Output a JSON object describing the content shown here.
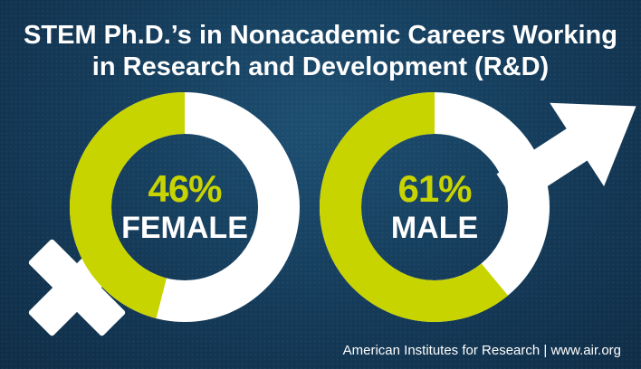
{
  "title": {
    "line1": "STEM Ph.D.’s in Nonacademic Careers Working",
    "line2": "in Research and Development (R&D)"
  },
  "colors": {
    "accent": "#c8d400",
    "remainder": "#ffffff",
    "background": "#153c5a"
  },
  "chart_data": [
    {
      "type": "pie",
      "category": "FEMALE",
      "value": 46,
      "value_label": "46%",
      "symbol": "female-symbol-icon"
    },
    {
      "type": "pie",
      "category": "MALE",
      "value": 61,
      "value_label": "61%",
      "symbol": "male-symbol-icon"
    }
  ],
  "footer": {
    "organization": "American Institutes for Research",
    "separator": "|",
    "url": "www.air.org"
  }
}
